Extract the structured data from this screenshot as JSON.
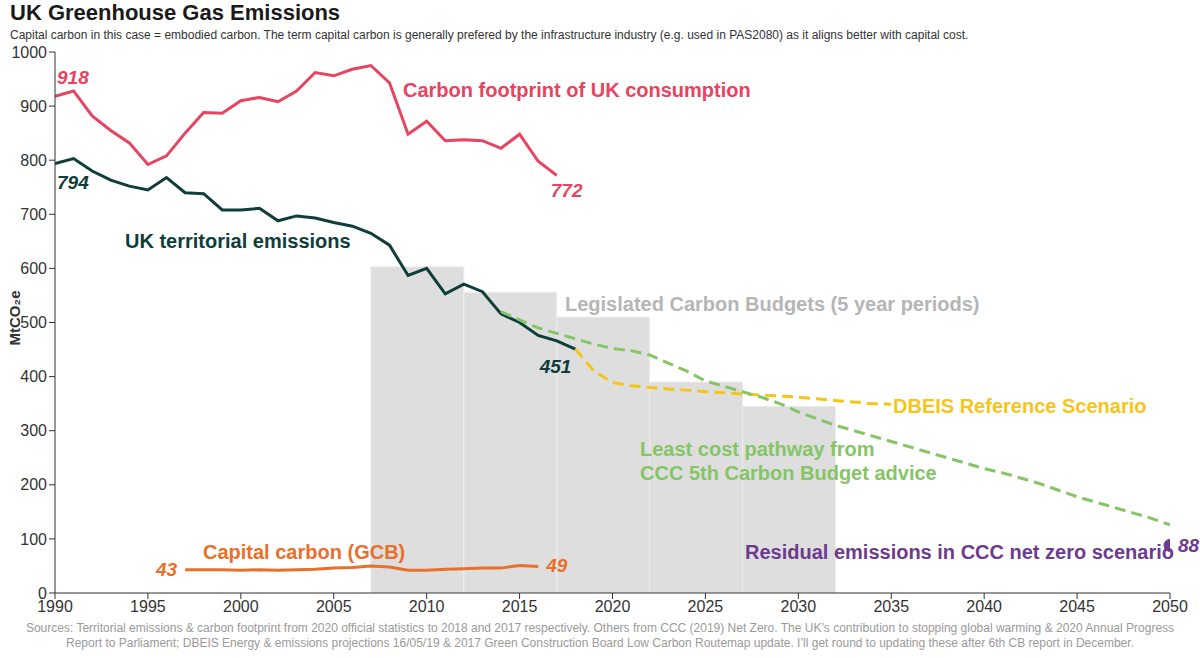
{
  "chart_data": {
    "type": "line",
    "title": "UK Greenhouse Gas Emissions",
    "subtitle": "Capital carbon in this case = embodied carbon. The term capital carbon is generally prefered by the infrastructure industry (e.g. used in PAS2080) as it aligns better with capital cost.",
    "y_label": "MtCO₂e",
    "source": "Sources:  Territorial emissions & carbon footprint from 2020 official statistics to 2018 and 2017 respectively. Others from CCC (2019) Net Zero. The UK’s contribution to stopping global warming & 2020 Annual Progress Report to Parliament; DBEIS Energy & emissions projections 16/05/19 & 2017 Green Construction Board Low Carbon Routemap update. I’ll get round to updating these after 6th CB report in December.",
    "xlim": [
      1990,
      2050
    ],
    "xticks": [
      1990,
      1995,
      2000,
      2005,
      2010,
      2015,
      2020,
      2025,
      2030,
      2035,
      2040,
      2045,
      2050
    ],
    "ylim": [
      0,
      1000
    ],
    "yticks": [
      0,
      100,
      200,
      300,
      400,
      500,
      600,
      700,
      800,
      900,
      1000
    ],
    "grid": false,
    "series": [
      {
        "name": "Legislated Carbon Budgets (5 year periods)",
        "type": "bar",
        "color": "#dedede",
        "x_start": [
          2007,
          2012,
          2017,
          2022,
          2027
        ],
        "x_end": [
          2012,
          2017,
          2022,
          2027,
          2032
        ],
        "values": [
          603,
          556,
          510,
          390,
          345
        ]
      },
      {
        "name": "Carbon footprint of UK consumption",
        "type": "line",
        "color": "#e8435f",
        "line_style": "solid",
        "marker": "none",
        "x": [
          1990,
          1991,
          1992,
          1993,
          1994,
          1995,
          1996,
          1997,
          1998,
          1999,
          2000,
          2001,
          2002,
          2003,
          2004,
          2005,
          2006,
          2007,
          2008,
          2009,
          2010,
          2011,
          2012,
          2013,
          2014,
          2015,
          2016,
          2017
        ],
        "values": [
          918,
          928,
          882,
          855,
          832,
          792,
          808,
          850,
          888,
          887,
          910,
          916,
          908,
          928,
          962,
          956,
          968,
          975,
          943,
          848,
          872,
          836,
          838,
          836,
          822,
          848,
          798,
          772
        ],
        "value_labels": [
          "918",
          null,
          null,
          null,
          null,
          null,
          null,
          null,
          null,
          null,
          null,
          null,
          null,
          null,
          null,
          null,
          null,
          null,
          null,
          null,
          null,
          null,
          null,
          null,
          null,
          null,
          null,
          "772"
        ]
      },
      {
        "name": "UK territorial emissions",
        "type": "line",
        "color": "#0e3d3a",
        "line_style": "solid",
        "marker": "none",
        "x": [
          1990,
          1991,
          1992,
          1993,
          1994,
          1995,
          1996,
          1997,
          1998,
          1999,
          2000,
          2001,
          2002,
          2003,
          2004,
          2005,
          2006,
          2007,
          2008,
          2009,
          2010,
          2011,
          2012,
          2013,
          2014,
          2015,
          2016,
          2017,
          2018
        ],
        "values": [
          794,
          803,
          780,
          763,
          752,
          745,
          768,
          740,
          738,
          708,
          708,
          711,
          688,
          697,
          693,
          685,
          678,
          665,
          643,
          587,
          600,
          553,
          571,
          557,
          516,
          500,
          476,
          466,
          451
        ],
        "value_labels": [
          "794",
          null,
          null,
          null,
          null,
          null,
          null,
          null,
          null,
          null,
          null,
          null,
          null,
          null,
          null,
          null,
          null,
          null,
          null,
          null,
          null,
          null,
          null,
          null,
          null,
          null,
          null,
          null,
          "451"
        ]
      },
      {
        "name": "Capital carbon (GCB)",
        "type": "line",
        "color": "#e8702a",
        "line_style": "solid",
        "marker": "none",
        "x": [
          1997,
          1998,
          1999,
          2000,
          2001,
          2002,
          2003,
          2004,
          2005,
          2006,
          2007,
          2008,
          2009,
          2010,
          2011,
          2012,
          2013,
          2014,
          2015,
          2016
        ],
        "values": [
          43,
          43,
          43,
          42,
          43,
          42,
          43,
          44,
          46,
          47,
          50,
          48,
          42,
          42,
          44,
          45,
          46,
          46,
          51,
          49
        ],
        "value_labels": [
          "43",
          null,
          null,
          null,
          null,
          null,
          null,
          null,
          null,
          null,
          null,
          null,
          null,
          null,
          null,
          null,
          null,
          null,
          null,
          "49"
        ]
      },
      {
        "name": "DBEIS Reference Scenario",
        "type": "line",
        "color": "#f5c518",
        "line_style": "dashed",
        "marker": "none",
        "x": [
          2018,
          2019,
          2020,
          2021,
          2022,
          2023,
          2024,
          2025,
          2026,
          2027,
          2028,
          2029,
          2030,
          2031,
          2032,
          2033,
          2034,
          2035
        ],
        "values": [
          451,
          410,
          389,
          383,
          380,
          377,
          375,
          372,
          370,
          368,
          366,
          364,
          362,
          359,
          356,
          353,
          350,
          349
        ]
      },
      {
        "name": "Least cost pathway from\nCCC 5th Carbon Budget advice",
        "type": "line",
        "color": "#86c565",
        "line_style": "dashed",
        "marker": "none",
        "x": [
          2014,
          2015,
          2016,
          2017,
          2018,
          2019,
          2020,
          2021,
          2022,
          2023,
          2024,
          2025,
          2026,
          2027,
          2028,
          2029,
          2030,
          2031,
          2032,
          2033,
          2034,
          2035,
          2036,
          2037,
          2038,
          2039,
          2040,
          2041,
          2042,
          2043,
          2044,
          2045,
          2046,
          2047,
          2048,
          2049,
          2050
        ],
        "values": [
          520,
          505,
          490,
          480,
          470,
          460,
          452,
          448,
          440,
          425,
          410,
          392,
          382,
          372,
          362,
          350,
          335,
          322,
          310,
          300,
          290,
          280,
          270,
          260,
          250,
          240,
          230,
          222,
          212,
          202,
          190,
          178,
          168,
          158,
          148,
          138,
          126
        ]
      },
      {
        "name": "Residual emissions in CCC net zero scenario",
        "type": "scatter",
        "color": "#6d3b8e",
        "marker": "circle",
        "x": [
          2050
        ],
        "values": [
          88
        ],
        "value_labels": [
          "88"
        ]
      }
    ]
  }
}
